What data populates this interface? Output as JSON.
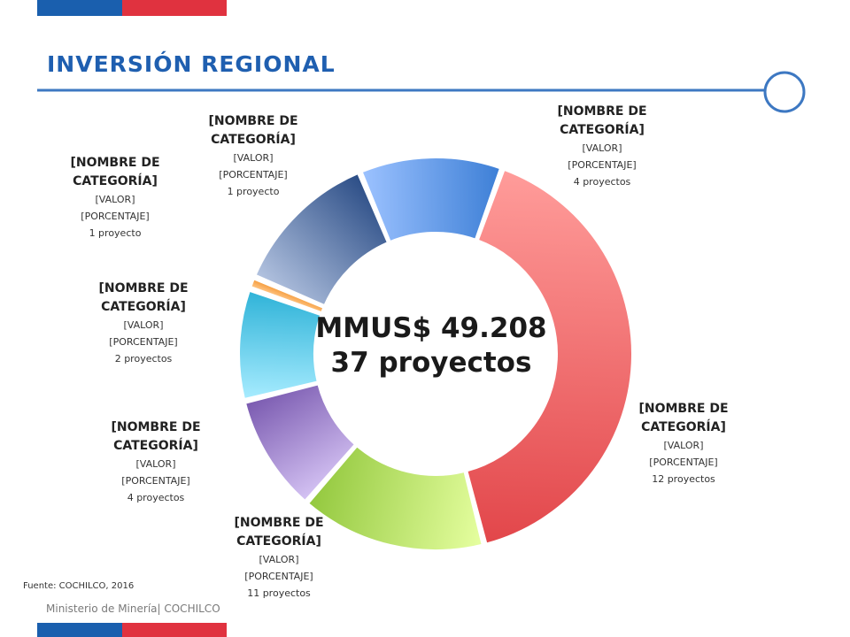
{
  "header": {
    "title": "INVERSIÓN REGIONAL"
  },
  "center": {
    "total": "MMUS$ 49.208",
    "projects": "37 proyectos"
  },
  "source": "Fuente: COCHILCO, 2016",
  "footer": "Ministerio de Minería| COCHILCO",
  "colors": {
    "brand_blue": "#1a5fae",
    "brand_red": "#e0323f",
    "title_blue": "#1f5fb0"
  },
  "chart_data": {
    "type": "pie",
    "title": "",
    "center_labels": [
      "MMUS$ 49.208",
      "37 proyectos"
    ],
    "segments": [
      {
        "name": "[NOMBRE DE CATEGORÍA]",
        "value_label": "[VALOR]",
        "percent_label": "[PORCENTAJE]",
        "projects_label": "12 proyectos",
        "share": 0.395,
        "color": "#e2464a",
        "light": "#ff9c9a"
      },
      {
        "name": "[NOMBRE DE CATEGORÍA]",
        "value_label": "[VALOR]",
        "percent_label": "[PORCENTAJE]",
        "projects_label": "11 proyectos",
        "share": 0.15,
        "color": "#93c83e",
        "light": "#e6ffa0"
      },
      {
        "name": "[NOMBRE DE CATEGORÍA]",
        "value_label": "[VALOR]",
        "percent_label": "[PORCENTAJE]",
        "projects_label": "4 proyectos",
        "share": 0.095,
        "color": "#7a5ab0",
        "light": "#d4c2f3"
      },
      {
        "name": "[NOMBRE DE CATEGORÍA]",
        "value_label": "[VALOR]",
        "percent_label": "[PORCENTAJE]",
        "projects_label": "2 proyectos",
        "share": 0.09,
        "color": "#2fb3d8",
        "light": "#a8ecff"
      },
      {
        "name": "[NOMBRE DE CATEGORÍA]",
        "value_label": "[VALOR]",
        "percent_label": "[PORCENTAJE]",
        "projects_label": "1 proyecto",
        "share": 0.01,
        "color": "#f59a38",
        "light": "#ffc88a"
      },
      {
        "name": "[NOMBRE DE CATEGORÍA]",
        "value_label": "[VALOR]",
        "percent_label": "[PORCENTAJE]",
        "projects_label": "1 proyecto",
        "share": 0.12,
        "color": "#2b4d86",
        "light": "#b3c3e0"
      },
      {
        "name": "[NOMBRE DE CATEGORÍA]",
        "value_label": "[VALOR]",
        "percent_label": "[PORCENTAJE]",
        "projects_label": "4 proyectos",
        "share": 0.115,
        "color": "#3d7fd6",
        "light": "#9cc2ff"
      }
    ]
  }
}
